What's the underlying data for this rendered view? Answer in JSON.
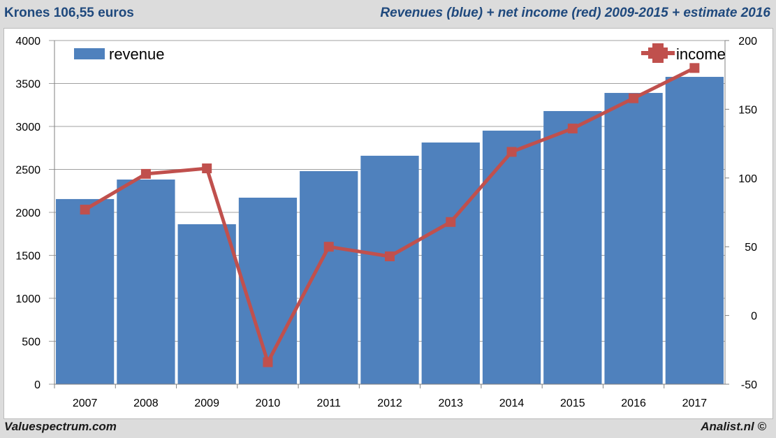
{
  "header": {
    "left": "Krones  106,55 euros",
    "right": "Revenues (blue) + net income (red) 2009-2015 + estimate 2016"
  },
  "footer": {
    "left": "Valuespectrum.com",
    "right": "Analist.nl ©"
  },
  "chart_data": {
    "type": "bar",
    "categories": [
      "2007",
      "2008",
      "2009",
      "2010",
      "2011",
      "2012",
      "2013",
      "2014",
      "2015",
      "2016",
      "2017"
    ],
    "series": [
      {
        "name": "revenue",
        "type": "bar",
        "axis": "left",
        "color": "#4f81bd",
        "values": [
          2155,
          2382,
          1862,
          2171,
          2480,
          2659,
          2813,
          2951,
          3179,
          3390,
          3577
        ]
      },
      {
        "name": "income",
        "type": "line",
        "axis": "right",
        "color": "#c0504d",
        "values": [
          77,
          103,
          107,
          -34,
          50,
          43,
          68,
          119,
          136,
          158,
          180
        ]
      }
    ],
    "ylim_left": [
      0,
      4000
    ],
    "yticks_left": [
      0,
      500,
      1000,
      1500,
      2000,
      2500,
      3000,
      3500,
      4000
    ],
    "ylim_right": [
      -50,
      200
    ],
    "yticks_right": [
      -50,
      0,
      50,
      100,
      150,
      200
    ],
    "grid": true,
    "legend": [
      "top-left",
      "top-right"
    ]
  }
}
